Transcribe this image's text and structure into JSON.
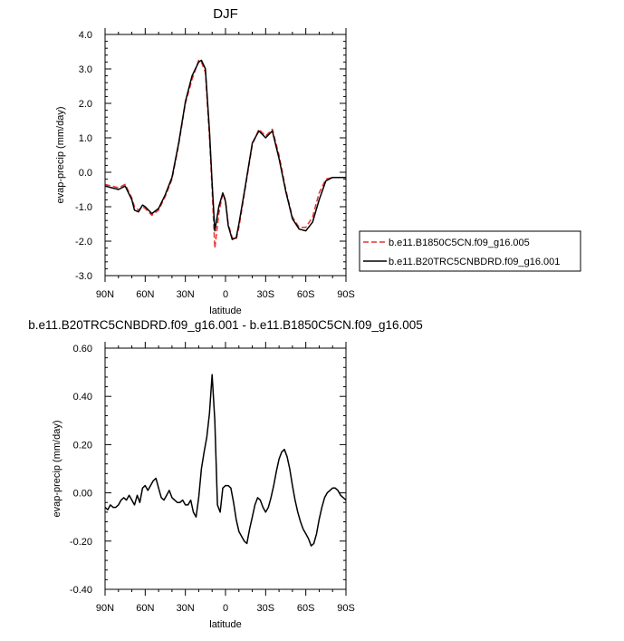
{
  "chart_data": [
    {
      "type": "line",
      "title": "DJF",
      "xlabel": "latitude",
      "ylabel": "evap-precip (mm/day)",
      "xlim": [
        90,
        -90
      ],
      "ylim": [
        -3.0,
        4.0
      ],
      "xticks": [
        90,
        60,
        30,
        0,
        -30,
        -60,
        -90
      ],
      "xtick_labels": [
        "90N",
        "60N",
        "30N",
        "0",
        "30S",
        "60S",
        "90S"
      ],
      "yticks": [
        -3.0,
        -2.0,
        -1.0,
        0.0,
        1.0,
        2.0,
        3.0,
        4.0
      ],
      "ytick_labels": [
        "-3.0",
        "-2.0",
        "-1.0",
        "0.0",
        "1.0",
        "2.0",
        "3.0",
        "4.0"
      ],
      "grid": false,
      "legend": "right",
      "x": [
        90,
        85,
        80,
        75,
        70,
        68,
        65,
        62,
        60,
        55,
        50,
        45,
        40,
        35,
        30,
        25,
        20,
        18,
        15,
        12,
        10,
        8,
        5,
        2,
        0,
        -2,
        -5,
        -8,
        -10,
        -15,
        -20,
        -25,
        -30,
        -35,
        -40,
        -45,
        -50,
        -55,
        -60,
        -65,
        -70,
        -75,
        -80,
        -85,
        -90
      ],
      "series": [
        {
          "name": "b.e11.B1850C5CN.f09_g16.005",
          "color": "#e8312f",
          "dash": "dashed",
          "values": [
            -0.35,
            -0.4,
            -0.45,
            -0.35,
            -0.75,
            -1.0,
            -1.1,
            -1.0,
            -1.05,
            -1.25,
            -1.1,
            -0.7,
            -0.2,
            0.8,
            2.0,
            2.7,
            3.25,
            3.2,
            2.9,
            1.0,
            -0.5,
            -2.2,
            -1.2,
            -0.6,
            -0.8,
            -1.5,
            -1.9,
            -1.95,
            -1.6,
            -0.4,
            0.8,
            1.25,
            1.05,
            1.25,
            0.5,
            -0.5,
            -1.3,
            -1.6,
            -1.6,
            -1.3,
            -0.6,
            -0.2,
            -0.15,
            -0.15,
            -0.15
          ]
        },
        {
          "name": "b.e11.B20TRC5CNBDRD.f09_g16.001",
          "color": "#000000",
          "dash": "solid",
          "values": [
            -0.4,
            -0.45,
            -0.5,
            -0.4,
            -0.8,
            -1.1,
            -1.15,
            -0.95,
            -1.0,
            -1.2,
            -1.05,
            -0.65,
            -0.15,
            0.85,
            2.05,
            2.8,
            3.2,
            3.25,
            3.0,
            1.2,
            -0.3,
            -1.7,
            -1.0,
            -0.6,
            -0.85,
            -1.55,
            -1.95,
            -1.9,
            -1.5,
            -0.35,
            0.85,
            1.2,
            1.0,
            1.2,
            0.4,
            -0.55,
            -1.35,
            -1.65,
            -1.7,
            -1.45,
            -0.8,
            -0.25,
            -0.15,
            -0.15,
            -0.15
          ]
        }
      ]
    },
    {
      "type": "line",
      "title": "b.e11.B20TRC5CNBDRD.f09_g16.001 - b.e11.B1850C5CN.f09_g16.005",
      "xlabel": "latitude",
      "ylabel": "evap-precip (mm/day)",
      "xlim": [
        90,
        -90
      ],
      "ylim": [
        -0.4,
        0.6
      ],
      "xticks": [
        90,
        60,
        30,
        0,
        -30,
        -60,
        -90
      ],
      "xtick_labels": [
        "90N",
        "60N",
        "30N",
        "0",
        "30S",
        "60S",
        "90S"
      ],
      "yticks": [
        -0.4,
        -0.2,
        0.0,
        0.2,
        0.4,
        0.6
      ],
      "ytick_labels": [
        "-0.40",
        "-0.20",
        "0.00",
        "0.20",
        "0.40",
        "0.60"
      ],
      "grid": false,
      "x": [
        90,
        88,
        86,
        84,
        82,
        80,
        78,
        76,
        74,
        72,
        70,
        68,
        66,
        64,
        62,
        60,
        58,
        56,
        54,
        52,
        50,
        48,
        46,
        44,
        42,
        40,
        38,
        36,
        34,
        32,
        30,
        28,
        26,
        24,
        22,
        20,
        18,
        16,
        14,
        12,
        10,
        8,
        6,
        4,
        2,
        0,
        -2,
        -4,
        -6,
        -8,
        -10,
        -12,
        -14,
        -16,
        -18,
        -20,
        -22,
        -24,
        -26,
        -28,
        -30,
        -32,
        -34,
        -36,
        -38,
        -40,
        -42,
        -44,
        -46,
        -48,
        -50,
        -52,
        -54,
        -56,
        -58,
        -60,
        -62,
        -64,
        -66,
        -68,
        -70,
        -72,
        -74,
        -76,
        -78,
        -80,
        -82,
        -84,
        -86,
        -88,
        -90
      ],
      "series": [
        {
          "name": "",
          "color": "#000000",
          "dash": "solid",
          "values": [
            -0.06,
            -0.07,
            -0.05,
            -0.06,
            -0.06,
            -0.05,
            -0.03,
            -0.02,
            -0.03,
            -0.01,
            -0.03,
            -0.05,
            -0.01,
            -0.04,
            0.02,
            0.03,
            0.01,
            0.03,
            0.05,
            0.06,
            0.02,
            -0.02,
            -0.03,
            -0.01,
            0.01,
            -0.02,
            -0.03,
            -0.04,
            -0.04,
            -0.03,
            -0.05,
            -0.05,
            -0.03,
            -0.08,
            -0.1,
            -0.02,
            0.1,
            0.17,
            0.23,
            0.33,
            0.49,
            0.3,
            -0.05,
            -0.08,
            0.02,
            0.03,
            0.03,
            0.02,
            -0.04,
            -0.11,
            -0.16,
            -0.18,
            -0.2,
            -0.21,
            -0.15,
            -0.1,
            -0.05,
            -0.02,
            -0.03,
            -0.06,
            -0.08,
            -0.06,
            -0.02,
            0.03,
            0.09,
            0.14,
            0.17,
            0.18,
            0.15,
            0.1,
            0.03,
            -0.03,
            -0.08,
            -0.12,
            -0.15,
            -0.17,
            -0.19,
            -0.22,
            -0.21,
            -0.17,
            -0.11,
            -0.06,
            -0.02,
            0.0,
            0.01,
            0.02,
            0.02,
            0.01,
            -0.01,
            -0.02,
            -0.03
          ]
        }
      ]
    }
  ]
}
